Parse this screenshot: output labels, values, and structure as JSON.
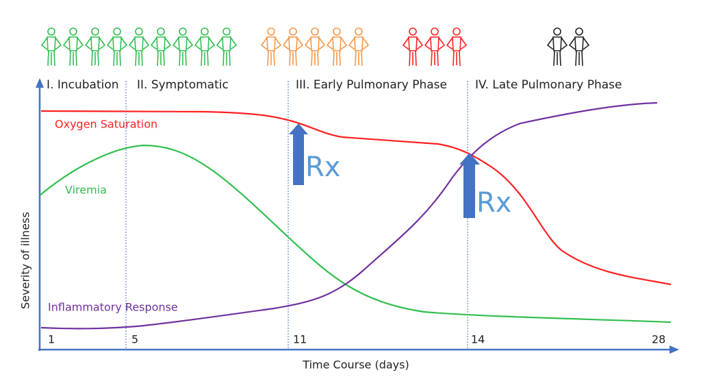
{
  "phases": [
    "I. Incubation",
    "II. Symptomatic",
    "III. Early Pulmonary Phase",
    "IV. Late Pulmonary Phase"
  ],
  "curves": [
    "Oxygen Saturation",
    "Viremia",
    "Inflammatory Response"
  ],
  "treatment_labels": [
    "Rx",
    "Rx"
  ],
  "axes": {
    "y_label": "Severity of illness",
    "x_label": "Time Course (days)",
    "x_ticks": [
      "1",
      "5",
      "11",
      "14",
      "28"
    ]
  }
}
